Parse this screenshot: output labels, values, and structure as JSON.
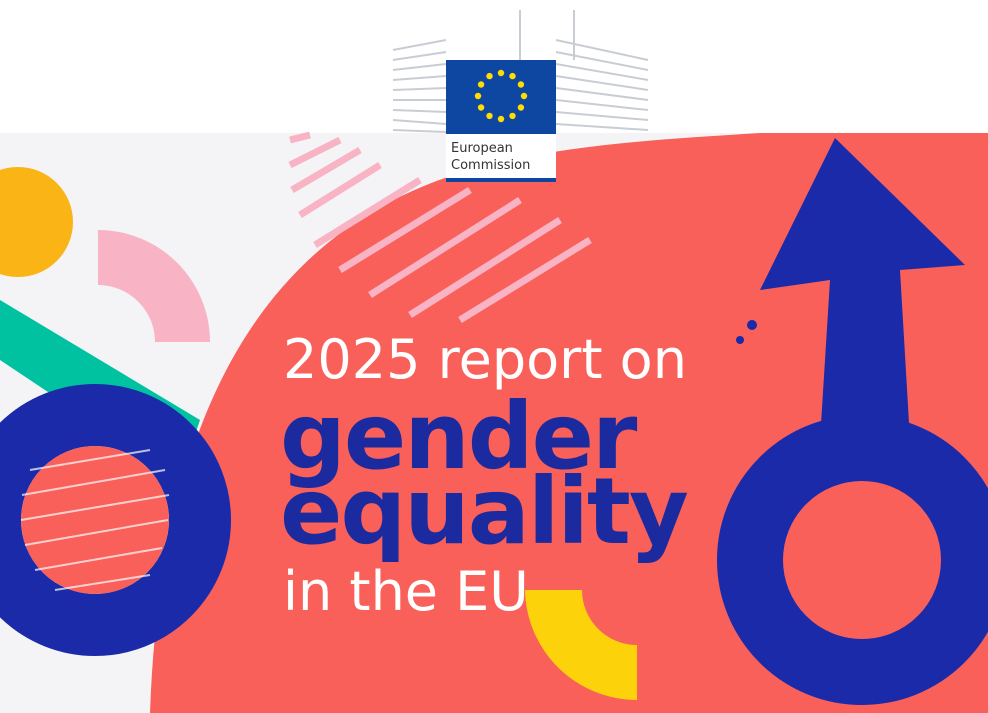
{
  "logo": {
    "line1": "European",
    "line2": "Commission"
  },
  "title": {
    "line1": "2025 report on",
    "line2": "gender",
    "line3": "equality",
    "line4": "in the EU"
  }
}
